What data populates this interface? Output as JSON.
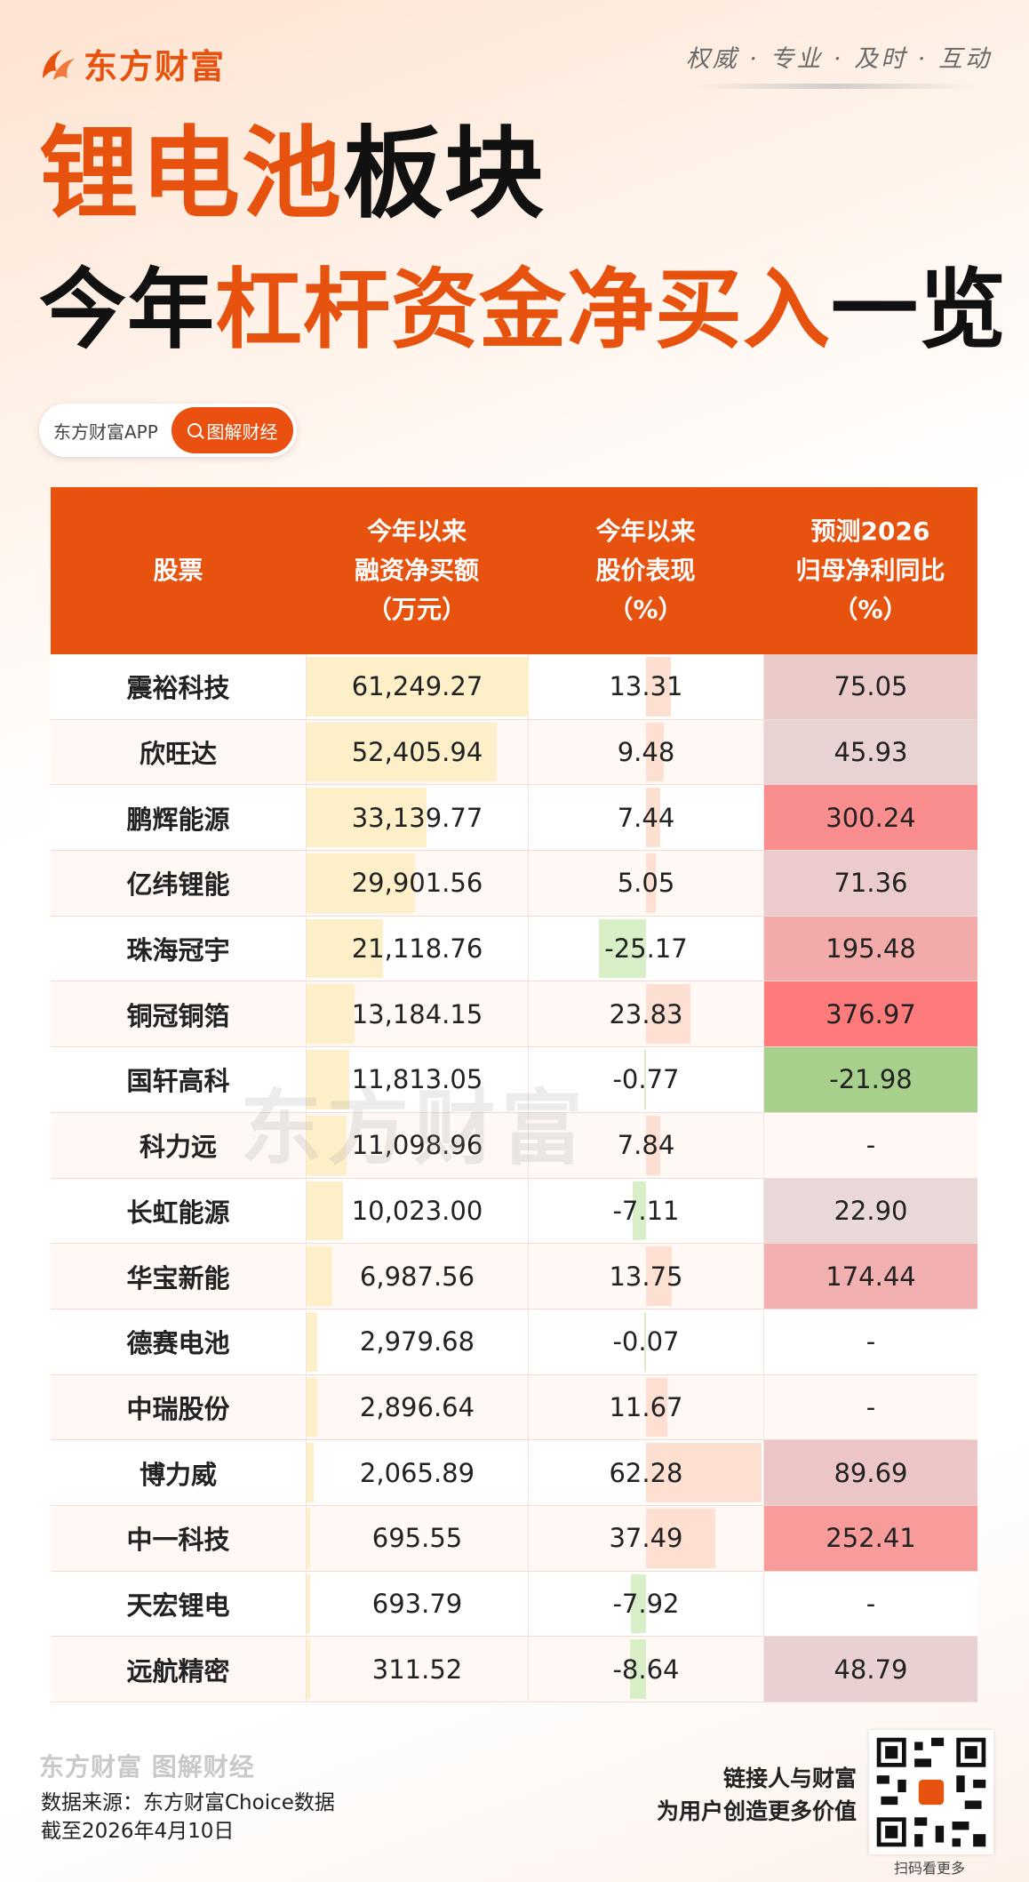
{
  "brand": {
    "name": "东方财富",
    "slogan": "权威 · 专业 · 及时 · 互动"
  },
  "title": {
    "line1_orange": "锂电池",
    "line1_black": "板块",
    "line2_black_a": "今年",
    "line2_orange": "杠杆资金净买入",
    "line2_black_b": "一览"
  },
  "chip": {
    "left": "东方财富APP",
    "right": "图解财经"
  },
  "table": {
    "headers": [
      "股票",
      "今年以来\n融资净买额\n（万元）",
      "今年以来\n股价表现\n（%）",
      "预测2026\n归母净利同比\n（%）"
    ]
  },
  "chart_data": {
    "type": "table",
    "columns": [
      "股票",
      "今年以来融资净买额（万元）",
      "今年以来股价表现（%）",
      "预测2026归母净利同比（%）"
    ],
    "rows": [
      {
        "name": "震裕科技",
        "net_buy": "61,249.27",
        "net_buy_value": 61249.27,
        "price": "13.31",
        "price_value": 13.31,
        "profit": "75.05",
        "profit_value": 75.05
      },
      {
        "name": "欣旺达",
        "net_buy": "52,405.94",
        "net_buy_value": 52405.94,
        "price": "9.48",
        "price_value": 9.48,
        "profit": "45.93",
        "profit_value": 45.93
      },
      {
        "name": "鹏辉能源",
        "net_buy": "33,139.77",
        "net_buy_value": 33139.77,
        "price": "7.44",
        "price_value": 7.44,
        "profit": "300.24",
        "profit_value": 300.24
      },
      {
        "name": "亿纬锂能",
        "net_buy": "29,901.56",
        "net_buy_value": 29901.56,
        "price": "5.05",
        "price_value": 5.05,
        "profit": "71.36",
        "profit_value": 71.36
      },
      {
        "name": "珠海冠宇",
        "net_buy": "21,118.76",
        "net_buy_value": 21118.76,
        "price": "-25.17",
        "price_value": -25.17,
        "profit": "195.48",
        "profit_value": 195.48
      },
      {
        "name": "铜冠铜箔",
        "net_buy": "13,184.15",
        "net_buy_value": 13184.15,
        "price": "23.83",
        "price_value": 23.83,
        "profit": "376.97",
        "profit_value": 376.97
      },
      {
        "name": "国轩高科",
        "net_buy": "11,813.05",
        "net_buy_value": 11813.05,
        "price": "-0.77",
        "price_value": -0.77,
        "profit": "-21.98",
        "profit_value": -21.98
      },
      {
        "name": "科力远",
        "net_buy": "11,098.96",
        "net_buy_value": 11098.96,
        "price": "7.84",
        "price_value": 7.84,
        "profit": "-",
        "profit_value": null
      },
      {
        "name": "长虹能源",
        "net_buy": "10,023.00",
        "net_buy_value": 10023.0,
        "price": "-7.11",
        "price_value": -7.11,
        "profit": "22.90",
        "profit_value": 22.9
      },
      {
        "name": "华宝新能",
        "net_buy": "6,987.56",
        "net_buy_value": 6987.56,
        "price": "13.75",
        "price_value": 13.75,
        "profit": "174.44",
        "profit_value": 174.44
      },
      {
        "name": "德赛电池",
        "net_buy": "2,979.68",
        "net_buy_value": 2979.68,
        "price": "-0.07",
        "price_value": -0.07,
        "profit": "-",
        "profit_value": null
      },
      {
        "name": "中瑞股份",
        "net_buy": "2,896.64",
        "net_buy_value": 2896.64,
        "price": "11.67",
        "price_value": 11.67,
        "profit": "-",
        "profit_value": null
      },
      {
        "name": "博力威",
        "net_buy": "2,065.89",
        "net_buy_value": 2065.89,
        "price": "62.28",
        "price_value": 62.28,
        "profit": "89.69",
        "profit_value": 89.69
      },
      {
        "name": "中一科技",
        "net_buy": "695.55",
        "net_buy_value": 695.55,
        "price": "37.49",
        "price_value": 37.49,
        "profit": "252.41",
        "profit_value": 252.41
      },
      {
        "name": "天宏锂电",
        "net_buy": "693.79",
        "net_buy_value": 693.79,
        "price": "-7.92",
        "price_value": -7.92,
        "profit": "-",
        "profit_value": null
      },
      {
        "name": "远航精密",
        "net_buy": "311.52",
        "net_buy_value": 311.52,
        "price": "-8.64",
        "price_value": -8.64,
        "profit": "48.79",
        "profit_value": 48.79
      }
    ]
  },
  "colors": {
    "accent": "#e8520f",
    "bar_net_buy": "#fdf0c8",
    "bar_price_pos": "#fde0d2",
    "bar_price_neg": "#d8efc8",
    "profit_high": "#ff7a7a",
    "profit_low": "#e6dede",
    "profit_neg": "#a8d08d"
  },
  "watermark": "东方财富",
  "footer": {
    "logo": "东方财富 图解财经",
    "source_line1": "数据来源：东方财富Choice数据",
    "source_line2": "截至2026年4月10日",
    "tagline1": "链接人与财富",
    "tagline2": "为用户创造更多价值",
    "qr_label": "扫码看更多"
  }
}
